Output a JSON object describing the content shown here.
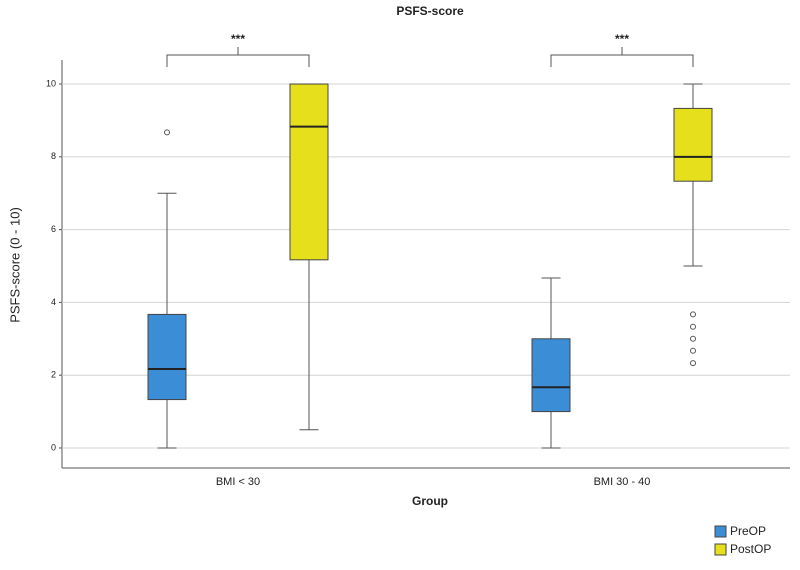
{
  "chart_data": {
    "type": "box",
    "title": "PSFS-score",
    "x_label": "Group",
    "y_label": "PSFS-score (0 - 10)",
    "categories": [
      "BMI < 30",
      "BMI 30 - 40"
    ],
    "annotations": [
      "***",
      "***"
    ],
    "ylim": [
      -0.55,
      10.66
    ],
    "yticks": [
      0,
      2,
      4,
      6,
      8,
      10
    ],
    "grid": true,
    "legend": "bottom-right",
    "series": [
      {
        "name": "PreOP",
        "color": "#3b8ed6",
        "min": [
          0,
          0
        ],
        "q1": [
          1.33,
          1
        ],
        "median": [
          2.17,
          1.67
        ],
        "q3": [
          3.67,
          3
        ],
        "max": [
          7,
          4.67
        ],
        "outliers": [
          [
            8.67
          ],
          []
        ]
      },
      {
        "name": "PostOP",
        "color": "#e6e01c",
        "min": [
          0.5,
          5
        ],
        "q1": [
          5.17,
          7.33
        ],
        "median": [
          8.83,
          8
        ],
        "q3": [
          10,
          9.33
        ],
        "max": [
          10,
          10
        ],
        "outliers": [
          [],
          [
            3.67,
            3.33,
            3,
            2.67,
            2.33
          ]
        ]
      }
    ]
  }
}
